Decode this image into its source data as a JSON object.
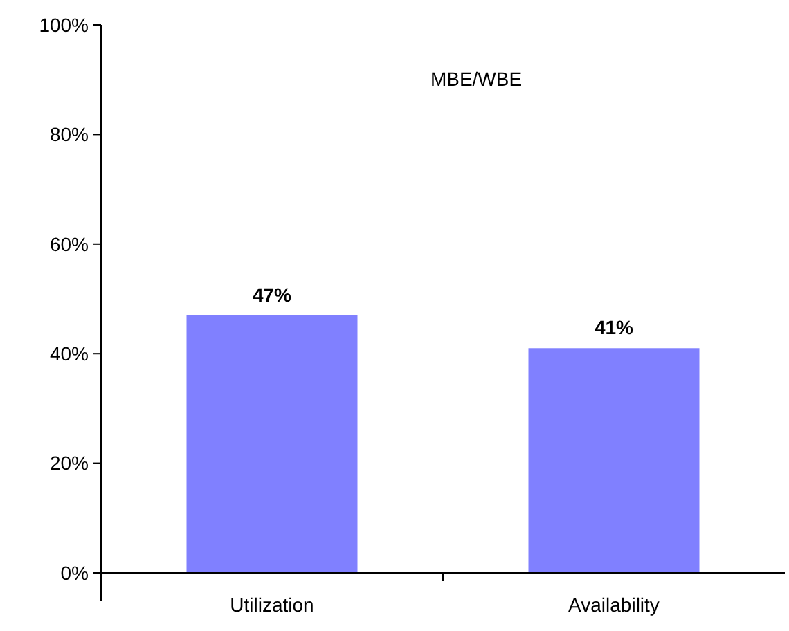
{
  "chart_data": {
    "type": "bar",
    "title": "MBE/WBE",
    "categories": [
      "Utilization",
      "Availability"
    ],
    "values": [
      47,
      41
    ],
    "color": "#8080ff",
    "value_labels": [
      "47%",
      "41%"
    ],
    "ylim": [
      0,
      100
    ],
    "yticks": [
      {
        "value": 0,
        "label": "0%"
      },
      {
        "value": 20,
        "label": "20%"
      },
      {
        "value": 40,
        "label": "40%"
      },
      {
        "value": 60,
        "label": "60%"
      },
      {
        "value": 80,
        "label": "80%"
      },
      {
        "value": 100,
        "label": "100%"
      }
    ],
    "grid": false
  }
}
